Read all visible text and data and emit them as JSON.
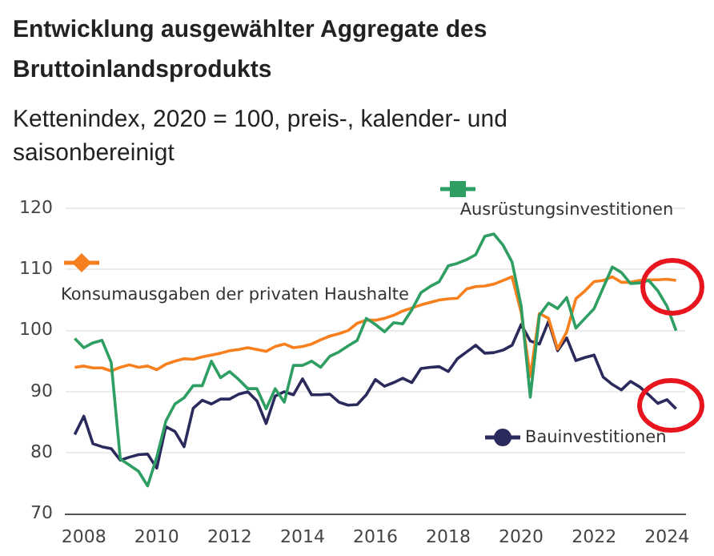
{
  "chart_data": {
    "type": "line",
    "title": "Entwicklung ausgewählter Aggregate des Bruttoinlandsprodukts",
    "subtitle": "Kettenindex, 2020 = 100, preis-, kalender- und saisonbereinigt",
    "x": [
      2007.75,
      2008,
      2008.25,
      2008.5,
      2008.75,
      2009,
      2009.25,
      2009.5,
      2009.75,
      2010,
      2010.25,
      2010.5,
      2010.75,
      2011,
      2011.25,
      2011.5,
      2011.75,
      2012,
      2012.25,
      2012.5,
      2012.75,
      2013,
      2013.25,
      2013.5,
      2013.75,
      2014,
      2014.25,
      2014.5,
      2014.75,
      2015,
      2015.25,
      2015.5,
      2015.75,
      2016,
      2016.25,
      2016.5,
      2016.75,
      2017,
      2017.25,
      2017.5,
      2017.75,
      2018,
      2018.25,
      2018.5,
      2018.75,
      2019,
      2019.25,
      2019.5,
      2019.75,
      2020,
      2020.25,
      2020.5,
      2020.75,
      2021,
      2021.25,
      2021.5,
      2021.75,
      2022,
      2022.25,
      2022.5,
      2022.75,
      2023,
      2023.25,
      2023.5,
      2023.75,
      2024,
      2024.25
    ],
    "series": [
      {
        "name": "Ausrüstungsinvestitionen",
        "color": "#2e9e63",
        "values": [
          98.7,
          97.2,
          98.0,
          98.4,
          94.8,
          79.0,
          78.0,
          77.0,
          74.6,
          79.3,
          85.2,
          88.0,
          89.0,
          91.0,
          91.0,
          95.0,
          92.3,
          93.3,
          92.0,
          90.5,
          90.5,
          87.2,
          90.5,
          88.3,
          94.3,
          94.3,
          95.0,
          94.0,
          95.8,
          96.5,
          97.5,
          98.4,
          102,
          101,
          99.8,
          101.3,
          101.1,
          103.4,
          106.2,
          107.2,
          108,
          110.6,
          111,
          111.6,
          112.4,
          115.4,
          115.8,
          114,
          111.2,
          104,
          89.1,
          102.5,
          104.5,
          103.6,
          105.4,
          100.4,
          102,
          103.6,
          107,
          110.4,
          109.5,
          107.7,
          107.8,
          108.2,
          106.5,
          104,
          100
        ]
      },
      {
        "name": "Konsumausgaben der privaten Haushalte",
        "color": "#f77f1d",
        "values": [
          94,
          94.2,
          93.9,
          93.9,
          93.4,
          94,
          94.4,
          94,
          94.2,
          93.6,
          94.5,
          95,
          95.4,
          95.3,
          95.7,
          96,
          96.3,
          96.7,
          96.9,
          97.2,
          96.9,
          96.6,
          97.4,
          97.8,
          97.2,
          97.4,
          97.8,
          98.5,
          99.1,
          99.5,
          100,
          101.2,
          101.7,
          101.7,
          102,
          102.5,
          103.2,
          103.7,
          104.2,
          104.6,
          105,
          105.2,
          105.3,
          106.8,
          107.2,
          107.3,
          107.6,
          108.2,
          108.8,
          103,
          92.5,
          102.8,
          102,
          97,
          99.8,
          105.2,
          106.5,
          108,
          108.2,
          108.8,
          107.9,
          107.9,
          108.2,
          108.3,
          108.3,
          108.4,
          108.2
        ]
      },
      {
        "name": "Bauinvestitionen",
        "color": "#2b2a5c",
        "values": [
          83,
          86,
          81.5,
          81,
          80.7,
          78.8,
          79.3,
          79.7,
          79.8,
          77.5,
          84.3,
          83.5,
          81,
          87.3,
          88.6,
          88,
          88.8,
          88.8,
          89.6,
          90,
          88.5,
          84.8,
          89.3,
          90,
          89.5,
          92.1,
          89.5,
          89.5,
          89.6,
          88.3,
          87.8,
          87.9,
          89.5,
          92,
          90.9,
          91.5,
          92.2,
          91.5,
          93.8,
          94,
          94.1,
          93.3,
          95.4,
          96.5,
          97.6,
          96.3,
          96.4,
          96.8,
          97.6,
          101,
          98.3,
          97.8,
          101.5,
          96.7,
          98.8,
          95.1,
          95.6,
          96,
          92.4,
          91.2,
          90.3,
          91.7,
          90.8,
          89.5,
          88.1,
          88.7,
          87.2
        ]
      }
    ],
    "xlim": [
      2007.5,
      2024.5
    ],
    "xticks": [
      2008,
      2010,
      2012,
      2014,
      2016,
      2018,
      2020,
      2022,
      2024
    ],
    "ylim": [
      70,
      120
    ],
    "yticks": [
      70,
      80,
      90,
      100,
      110,
      120
    ],
    "grid": "y",
    "legend": "top"
  }
}
